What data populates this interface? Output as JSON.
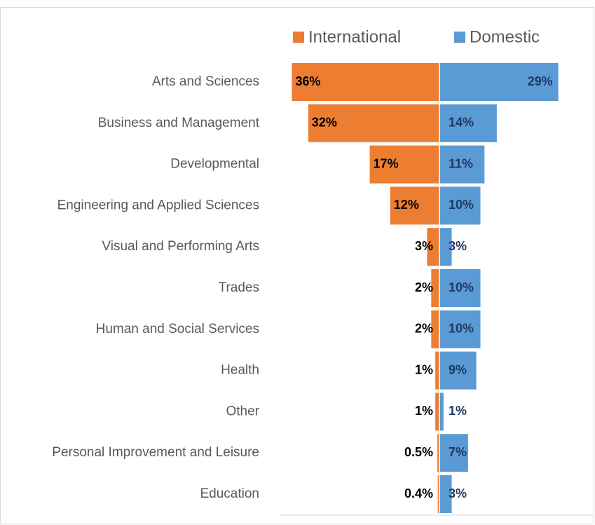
{
  "chart_data": {
    "type": "butterfly",
    "categories": [
      "Arts and Sciences",
      "Business and Management",
      "Developmental",
      "Engineering and Applied Sciences",
      "Visual and Performing Arts",
      "Trades",
      "Human and Social Services",
      "Health",
      "Other",
      "Personal Improvement and Leisure",
      "Education"
    ],
    "series": [
      {
        "name": "International",
        "color": "#ed7d31",
        "values": [
          36,
          32,
          17,
          12,
          3,
          2,
          2,
          1,
          1,
          0.5,
          0.4
        ],
        "value_labels": [
          "36%",
          "32%",
          "17%",
          "12%",
          "3%",
          "2%",
          "2%",
          "1%",
          "1%",
          "0.5%",
          "0.4%"
        ]
      },
      {
        "name": "Domestic",
        "color": "#5b9bd5",
        "values": [
          29,
          14,
          11,
          10,
          3,
          10,
          10,
          9,
          1,
          7,
          3
        ],
        "value_labels": [
          "29%",
          "14%",
          "11%",
          "10%",
          "3%",
          "10%",
          "10%",
          "9%",
          "1%",
          "7%",
          "3%"
        ]
      }
    ]
  }
}
